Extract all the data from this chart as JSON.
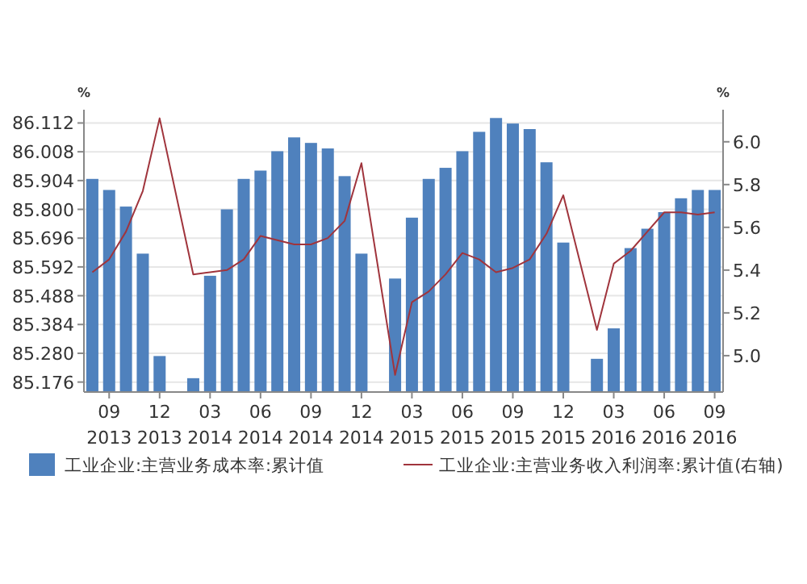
{
  "chart_data": {
    "type": "bar",
    "categories": [
      null,
      "09 2013",
      null,
      null,
      "12 2013",
      null,
      null,
      "03 2014",
      null,
      null,
      "06 2014",
      null,
      null,
      "09 2014",
      null,
      null,
      "12 2014",
      null,
      null,
      "03 2015",
      null,
      null,
      "06 2015",
      null,
      null,
      "09 2015",
      null,
      null,
      "12 2015",
      null,
      null,
      "03 2016",
      null,
      null,
      "06 2016",
      null,
      null,
      "09 2016"
    ],
    "series": [
      {
        "name": "工业企业:主营业务成本率:累计值",
        "color": "#4f81bd",
        "values": [
          85.91,
          85.87,
          85.81,
          85.64,
          85.27,
          null,
          85.19,
          85.56,
          85.8,
          85.91,
          85.94,
          86.01,
          86.06,
          86.04,
          86.02,
          85.92,
          85.64,
          null,
          85.55,
          85.77,
          85.91,
          85.95,
          86.01,
          86.08,
          86.13,
          86.11,
          86.09,
          85.97,
          85.68,
          null,
          85.26,
          85.37,
          85.66,
          85.73,
          85.79,
          85.84,
          85.87,
          85.87
        ]
      },
      {
        "name": "工业企业:主营业务收入利润率:累计值(右轴)",
        "type": "line",
        "axis": "y2",
        "color": "#a0343c",
        "values": [
          5.39,
          5.45,
          5.58,
          5.77,
          6.11,
          null,
          5.38,
          5.39,
          5.4,
          5.45,
          5.56,
          5.54,
          5.52,
          5.52,
          5.55,
          5.63,
          5.9,
          null,
          4.91,
          5.25,
          5.3,
          5.38,
          5.48,
          5.45,
          5.39,
          5.41,
          5.45,
          5.57,
          5.75,
          null,
          5.12,
          5.43,
          5.49,
          5.58,
          5.67,
          5.67,
          5.66,
          5.67
        ]
      }
    ],
    "ylabel": "%",
    "y2label": "%",
    "ylim": [
      85.14,
      86.16
    ],
    "yticks": [
      {
        "value": 85.176,
        "label": "85.176"
      },
      {
        "value": 85.28,
        "label": "85.280"
      },
      {
        "value": 85.384,
        "label": "85.384"
      },
      {
        "value": 85.488,
        "label": "85.488"
      },
      {
        "value": 85.592,
        "label": "85.592"
      },
      {
        "value": 85.696,
        "label": "85.696"
      },
      {
        "value": 85.8,
        "label": "85.800"
      },
      {
        "value": 85.904,
        "label": "85.904"
      },
      {
        "value": 86.008,
        "label": "86.008"
      },
      {
        "value": 86.112,
        "label": "86.112"
      }
    ],
    "y2lim": [
      4.83,
      6.15
    ],
    "y2ticks": [
      {
        "value": 5,
        "label": "5.0"
      },
      {
        "value": 5.2,
        "label": "5.2"
      },
      {
        "value": 5.4,
        "label": "5.4"
      },
      {
        "value": 5.6,
        "label": "5.6"
      },
      {
        "value": 5.8,
        "label": "5.8"
      },
      {
        "value": 6,
        "label": "6.0"
      }
    ],
    "grid": "y",
    "legend": "bottom"
  }
}
